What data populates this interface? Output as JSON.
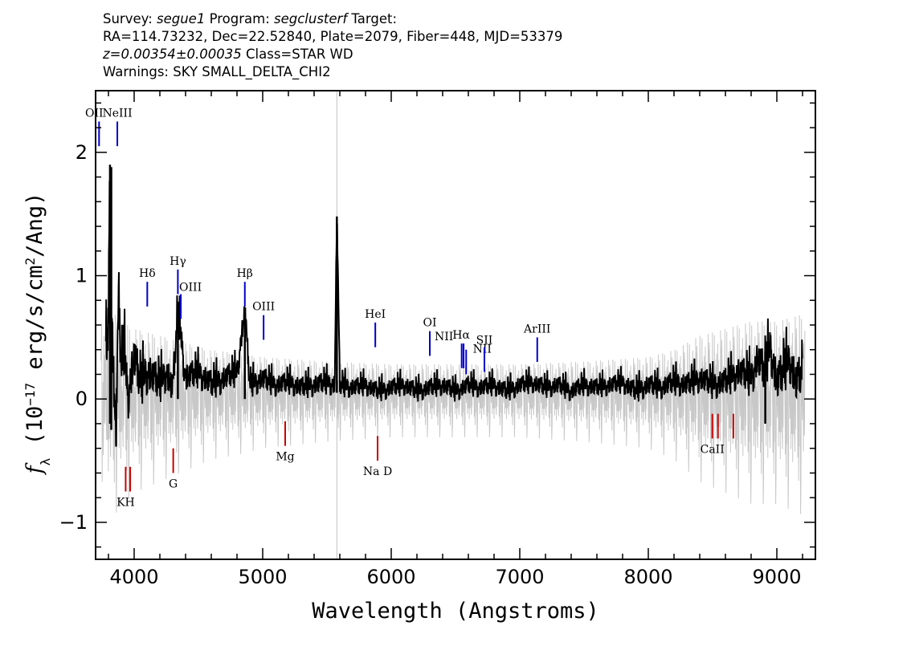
{
  "header": {
    "survey_label": "Survey: ",
    "survey": "segue1",
    "program_label": " Program: ",
    "program": "segclusterf",
    "target_label": " Target:",
    "line2": "RA=114.73232, Dec=22.52840, Plate=2079, Fiber=448, MJD=53379",
    "redshift": "z=0.00354±0.00035",
    "class_text": " Class=STAR WD",
    "warnings": "Warnings: SKY SMALL_DELTA_CHI2"
  },
  "chart_data": {
    "type": "line",
    "xlabel": "Wavelength (Angstroms)",
    "ylabel_parts": [
      "f",
      "λ",
      " (10",
      "−17",
      " erg/s/cm",
      "2",
      "/Ang)"
    ],
    "xlim": [
      3700,
      9300
    ],
    "ylim": [
      -1.3,
      2.5
    ],
    "x_ticks": [
      4000,
      5000,
      6000,
      7000,
      8000,
      9000
    ],
    "x_tick_labels": [
      "4000",
      "5000",
      "6000",
      "7000",
      "8000",
      "9000"
    ],
    "y_ticks": [
      -1,
      0,
      1,
      2
    ],
    "y_tick_labels": [
      "−1",
      "0",
      "1",
      "2"
    ],
    "x_minor_step": 200,
    "y_minor_step": 0.2,
    "sky_line": 5577,
    "series": [
      {
        "role": "flux",
        "color": "#000000",
        "x": [
          3780,
          3800,
          3810,
          3815,
          3820,
          3830,
          3840,
          3860,
          3880,
          3900,
          3920,
          3950,
          4000,
          4050,
          4100,
          4150,
          4200,
          4250,
          4300,
          4340,
          4400,
          4500,
          4600,
          4700,
          4800,
          4861,
          4900,
          5000,
          5100,
          5200,
          5300,
          5400,
          5500,
          5560,
          5577,
          5600,
          5700,
          5800,
          5900,
          6000,
          6100,
          6200,
          6300,
          6400,
          6500,
          6600,
          6700,
          6800,
          6900,
          7000,
          7100,
          7200,
          7300,
          7400,
          7500,
          7600,
          7700,
          7800,
          7900,
          8000,
          8100,
          8200,
          8300,
          8400,
          8500,
          8600,
          8700,
          8800,
          8850,
          8900,
          8950,
          9000,
          9050,
          9100,
          9150,
          9200
        ],
        "y": [
          0.3,
          0.5,
          1.9,
          1.0,
          0.2,
          0.6,
          0.1,
          -0.3,
          0.8,
          0.2,
          0.4,
          0.0,
          0.3,
          0.1,
          0.2,
          0.15,
          0.1,
          0.2,
          0.05,
          0.7,
          0.15,
          0.2,
          0.1,
          0.15,
          0.2,
          0.7,
          0.1,
          0.15,
          0.1,
          0.12,
          0.08,
          0.1,
          0.12,
          0.1,
          1.48,
          0.1,
          0.08,
          0.1,
          0.05,
          0.08,
          0.1,
          0.05,
          0.08,
          0.1,
          0.05,
          0.1,
          0.08,
          0.1,
          0.05,
          0.1,
          0.12,
          0.08,
          0.1,
          0.05,
          0.1,
          0.08,
          0.1,
          0.12,
          0.05,
          0.1,
          0.08,
          0.12,
          0.1,
          0.15,
          0.1,
          0.12,
          0.2,
          0.15,
          0.3,
          0.2,
          0.4,
          0.1,
          0.2,
          0.3,
          0.1,
          0.2
        ],
        "noise": [
          0.25,
          0.3,
          0.3,
          0.3,
          0.3,
          0.28,
          0.25,
          0.25,
          0.25,
          0.22,
          0.22,
          0.2,
          0.2,
          0.18,
          0.18,
          0.16,
          0.15,
          0.15,
          0.15,
          0.15,
          0.13,
          0.12,
          0.12,
          0.11,
          0.11,
          0.11,
          0.1,
          0.1,
          0.09,
          0.09,
          0.09,
          0.09,
          0.09,
          0.09,
          0.09,
          0.09,
          0.08,
          0.08,
          0.08,
          0.08,
          0.08,
          0.08,
          0.08,
          0.08,
          0.08,
          0.08,
          0.08,
          0.08,
          0.08,
          0.08,
          0.08,
          0.08,
          0.08,
          0.08,
          0.08,
          0.08,
          0.08,
          0.08,
          0.09,
          0.09,
          0.09,
          0.1,
          0.1,
          0.11,
          0.11,
          0.12,
          0.13,
          0.15,
          0.16,
          0.17,
          0.18,
          0.18,
          0.18,
          0.18,
          0.18,
          0.18
        ]
      },
      {
        "role": "error",
        "color": "#c8c8c8",
        "x": [
          3750,
          3800,
          3850,
          3900,
          4000,
          4200,
          4400,
          4600,
          4800,
          5000,
          5500,
          6000,
          6500,
          7000,
          7500,
          8000,
          8200,
          8400,
          8600,
          8800,
          9000,
          9200
        ],
        "y": [
          0.7,
          0.6,
          0.55,
          0.5,
          0.45,
          0.4,
          0.35,
          0.3,
          0.28,
          0.25,
          0.22,
          0.2,
          0.2,
          0.2,
          0.22,
          0.25,
          0.3,
          0.4,
          0.45,
          0.5,
          0.5,
          0.55
        ]
      }
    ],
    "emission_lines": [
      {
        "name": "OII",
        "label": "OII",
        "wavelength": 3727,
        "color": "#0000cc",
        "y_top": 2.25,
        "y_bottom": 2.05
      },
      {
        "name": "NeIII",
        "label": "NeIII",
        "wavelength": 3869,
        "color": "#0000cc",
        "y_top": 2.25,
        "y_bottom": 2.05
      },
      {
        "name": "Hdelta",
        "label": "Hδ",
        "wavelength": 4102,
        "color": "#0000cc",
        "y_top": 0.95,
        "y_bottom": 0.75
      },
      {
        "name": "Hgamma",
        "label": "Hγ",
        "wavelength": 4340,
        "color": "#0000cc",
        "y_top": 1.05,
        "y_bottom": 0.85
      },
      {
        "name": "OIII-4363",
        "label": "OIII",
        "wavelength": 4363,
        "color": "#0000cc",
        "y_top": 0.85,
        "y_bottom": 0.65
      },
      {
        "name": "Hbeta",
        "label": "Hβ",
        "wavelength": 4861,
        "color": "#0000cc",
        "y_top": 0.95,
        "y_bottom": 0.75
      },
      {
        "name": "OIII-5007",
        "label": "OIII",
        "wavelength": 5007,
        "color": "#0000cc",
        "y_top": 0.68,
        "y_bottom": 0.48
      },
      {
        "name": "HeI",
        "label": "HeI",
        "wavelength": 5876,
        "color": "#0000cc",
        "y_top": 0.62,
        "y_bottom": 0.42
      },
      {
        "name": "OI",
        "label": "OI",
        "wavelength": 6300,
        "color": "#0000cc",
        "y_top": 0.55,
        "y_bottom": 0.35
      },
      {
        "name": "NII-6548",
        "label": "NII",
        "wavelength": 6548,
        "color": "#0000cc",
        "y_top": 0.45,
        "y_bottom": 0.25
      },
      {
        "name": "Halpha",
        "label": "Hα",
        "wavelength": 6563,
        "color": "#0000cc",
        "y_top": 0.45,
        "y_bottom": 0.25
      },
      {
        "name": "NII-6583",
        "label": "NII",
        "wavelength": 6583,
        "color": "#0000cc",
        "y_top": 0.4,
        "y_bottom": 0.2
      },
      {
        "name": "SII",
        "label": "SII",
        "wavelength": 6725,
        "color": "#0000cc",
        "y_top": 0.42,
        "y_bottom": 0.22
      },
      {
        "name": "ArIII",
        "label": "ArIII",
        "wavelength": 7136,
        "color": "#0000cc",
        "y_top": 0.5,
        "y_bottom": 0.3
      }
    ],
    "absorption_lines": [
      {
        "name": "K",
        "label": "KH",
        "wavelength": 3934,
        "color": "#cc0000",
        "y_top": -0.55,
        "y_bottom": -0.75
      },
      {
        "name": "H",
        "wavelength": 3969,
        "color": "#cc0000",
        "y_top": -0.55,
        "y_bottom": -0.75
      },
      {
        "name": "G",
        "label": "G",
        "wavelength": 4304,
        "color": "#cc0000",
        "y_top": -0.4,
        "y_bottom": -0.6
      },
      {
        "name": "Mg",
        "label": "Mg",
        "wavelength": 5175,
        "color": "#cc0000",
        "y_top": -0.18,
        "y_bottom": -0.38
      },
      {
        "name": "NaD",
        "label": "Na D",
        "wavelength": 5894,
        "color": "#cc0000",
        "y_top": -0.3,
        "y_bottom": -0.5
      },
      {
        "name": "CaII-8498",
        "label": "CaII",
        "wavelength": 8498,
        "color": "#cc0000",
        "y_top": -0.12,
        "y_bottom": -0.32
      },
      {
        "name": "CaII-8542",
        "wavelength": 8542,
        "color": "#cc0000",
        "y_top": -0.12,
        "y_bottom": -0.32
      },
      {
        "name": "CaII-8662",
        "wavelength": 8662,
        "color": "#cc0000",
        "y_top": -0.12,
        "y_bottom": -0.32
      }
    ]
  }
}
